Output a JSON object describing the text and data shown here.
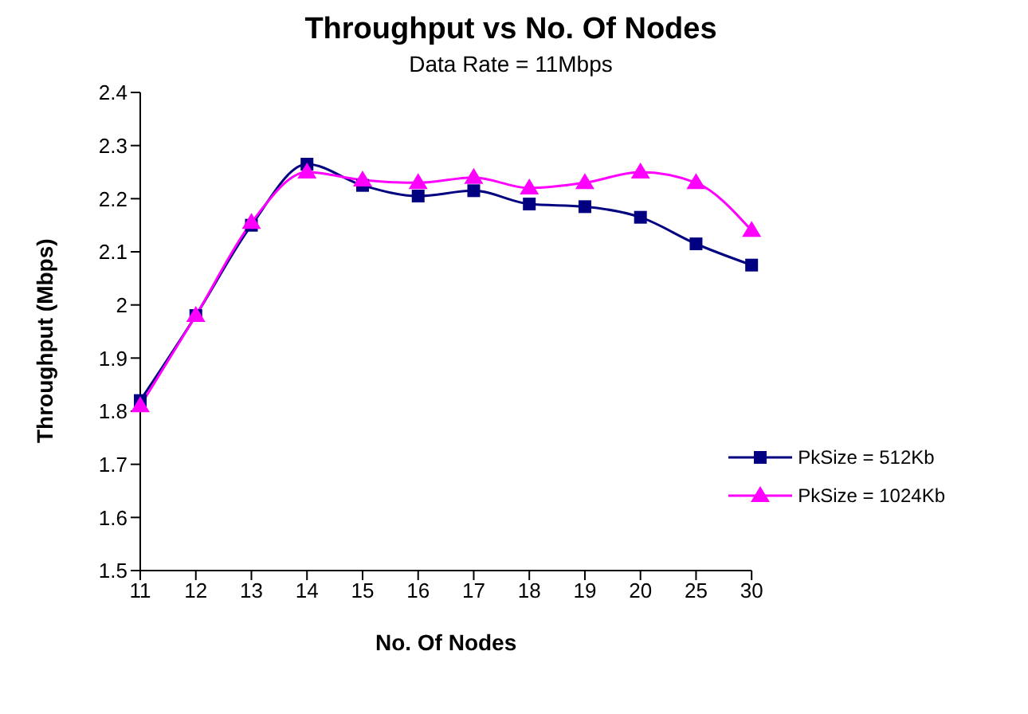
{
  "chart_data": {
    "type": "line",
    "title": "Throughput vs No. Of Nodes",
    "subtitle": "Data Rate = 11Mbps",
    "xlabel": "No. Of Nodes",
    "ylabel": "Throughput (Mbps)",
    "categories": [
      "11",
      "12",
      "13",
      "14",
      "15",
      "16",
      "17",
      "18",
      "19",
      "20",
      "25",
      "30"
    ],
    "series": [
      {
        "name": "PkSize = 512Kb",
        "color": "#000080",
        "marker": "square",
        "values": [
          1.82,
          1.98,
          2.15,
          2.265,
          2.225,
          2.205,
          2.215,
          2.19,
          2.185,
          2.165,
          2.115,
          2.075
        ]
      },
      {
        "name": "PkSize = 1024Kb",
        "color": "#ff00ff",
        "marker": "triangle",
        "values": [
          1.81,
          1.98,
          2.155,
          2.25,
          2.235,
          2.23,
          2.24,
          2.22,
          2.23,
          2.25,
          2.23,
          2.14
        ]
      }
    ],
    "ylim": [
      1.5,
      2.4
    ],
    "yticks": [
      1.5,
      1.6,
      1.7,
      1.8,
      1.9,
      2,
      2.1,
      2.2,
      2.3,
      2.4
    ],
    "grid": false,
    "legend": "bottom right"
  }
}
